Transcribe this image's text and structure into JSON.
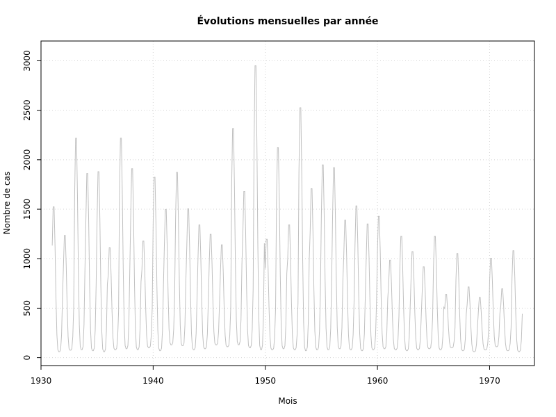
{
  "chart_data": {
    "type": "line",
    "title": "Évolutions mensuelles par année",
    "xlabel": "Mois",
    "ylabel": "Nombre de cas",
    "xlim": [
      1930,
      1974
    ],
    "ylim": [
      -80,
      3200
    ],
    "x_ticks": [
      1930,
      1940,
      1950,
      1960,
      1970
    ],
    "x_tick_labels": [
      "1930",
      "1940",
      "1950",
      "1960",
      "1970"
    ],
    "y_ticks": [
      0,
      500,
      1000,
      1500,
      2000,
      2500,
      3000
    ],
    "y_tick_labels": [
      "0",
      "500",
      "1000",
      "1500",
      "2000",
      "2500",
      "3000"
    ],
    "grid": true,
    "line_color": "#c0c0c0",
    "series": [
      {
        "x_start": 1931.0,
        "frequency": 12,
        "annual_peaks": [
          1580,
          1280,
          2300,
          1930,
          1950,
          1150,
          2300,
          1980,
          1220,
          1890,
          1550,
          1940,
          1560,
          1390,
          1290,
          1180,
          2400,
          1740,
          3060,
          1240,
          2200,
          1390,
          2620,
          1770,
          2020,
          1990,
          1440,
          1590,
          1400,
          1480,
          1020,
          1270,
          1110,
          950,
          1270,
          660,
          1090,
          740,
          630,
          1040,
          720,
          1120
        ],
        "annual_troughs": [
          60,
          75,
          80,
          70,
          60,
          80,
          90,
          80,
          100,
          70,
          130,
          120,
          80,
          90,
          130,
          110,
          130,
          100,
          80,
          80,
          90,
          80,
          70,
          80,
          80,
          90,
          80,
          70,
          80,
          90,
          80,
          70,
          80,
          90,
          80,
          100,
          70,
          60,
          80,
          110,
          70,
          60
        ]
      }
    ]
  }
}
